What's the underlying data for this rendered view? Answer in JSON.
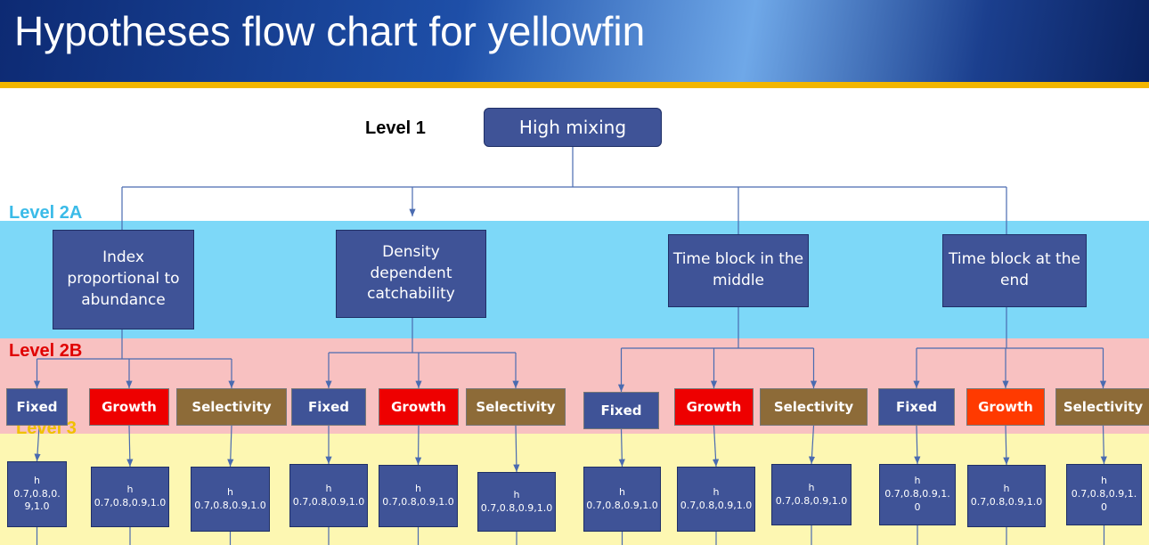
{
  "title": "Hypotheses flow chart for yellowfin",
  "levels": {
    "level_1": "Level 1",
    "level_2a": "Level 2A",
    "level_2b": "Level 2B",
    "level_3": "Level 3"
  },
  "root": {
    "label": "High mixing"
  },
  "level_2a_nodes": [
    {
      "label": "Index proportional to abundance"
    },
    {
      "label": "Density dependent catchability"
    },
    {
      "label": "Time block in the middle"
    },
    {
      "label": "Time block at the end"
    }
  ],
  "level_2b_nodes": [
    {
      "label": "Fixed"
    },
    {
      "label": "Growth"
    },
    {
      "label": "Selectivity"
    },
    {
      "label": "Fixed"
    },
    {
      "label": "Growth"
    },
    {
      "label": "Selectivity"
    },
    {
      "label": "Fixed"
    },
    {
      "label": "Growth"
    },
    {
      "label": "Selectivity"
    },
    {
      "label": "Fixed"
    },
    {
      "label": "Growth"
    },
    {
      "label": "Selectivity"
    }
  ],
  "level_3_nodes": [
    {
      "label": "h",
      "values": "0.7,0.8,0.9,1.0"
    },
    {
      "label": "h",
      "values": "0.7,0.8,0.9,1.0"
    },
    {
      "label": "h",
      "values": "0.7,0.8,0.9,1.0"
    },
    {
      "label": "h",
      "values": "0.7,0.8,0.9,1.0"
    },
    {
      "label": "h",
      "values": "0.7,0.8,0.9,1.0"
    },
    {
      "label": "h",
      "values": "0.7,0.8,0.9,1.0"
    },
    {
      "label": "h",
      "values": "0.7,0.8,0.9,1.0"
    },
    {
      "label": "h",
      "values": "0.7,0.8,0.9,1.0"
    },
    {
      "label": "h",
      "values": "0.7,0.8,0.9,1.0"
    },
    {
      "label": "h",
      "values": "0.7,0.8,0.9,1.0"
    },
    {
      "label": "h",
      "values": "0.7,0.8,0.9,1.0"
    },
    {
      "label": "h",
      "values": "0.7,0.8,0.9,1.0"
    }
  ]
}
